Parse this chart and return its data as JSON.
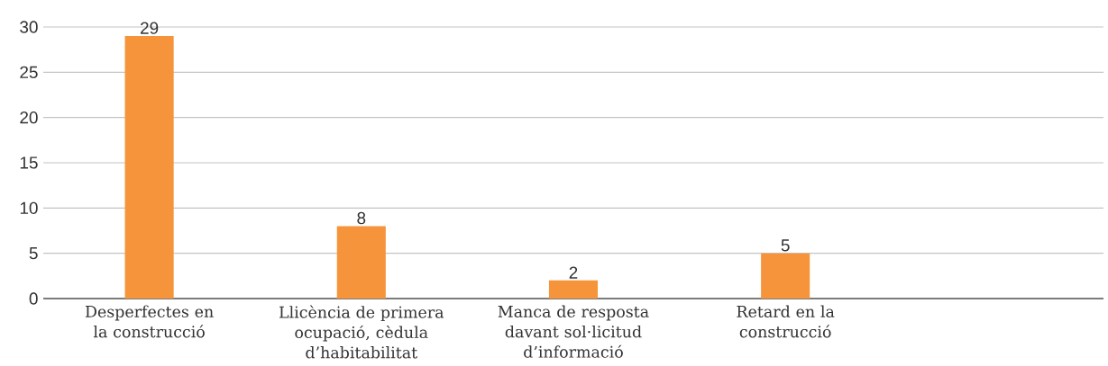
{
  "chart_data": {
    "type": "bar",
    "categories": [
      "Desperfectes en la construcció",
      "Llicència de primera ocupació, cèdula d’habitabilitat",
      "Manca de resposta davant sol·licitud d’informació",
      "Retard en la construcció",
      null
    ],
    "values": [
      29,
      8,
      2,
      5,
      null
    ],
    "color": "#f5943a",
    "ylim": [
      0,
      30
    ],
    "yticks": [
      0,
      5,
      10,
      15,
      20,
      25,
      30
    ],
    "grid": "y",
    "data_labels": true
  }
}
